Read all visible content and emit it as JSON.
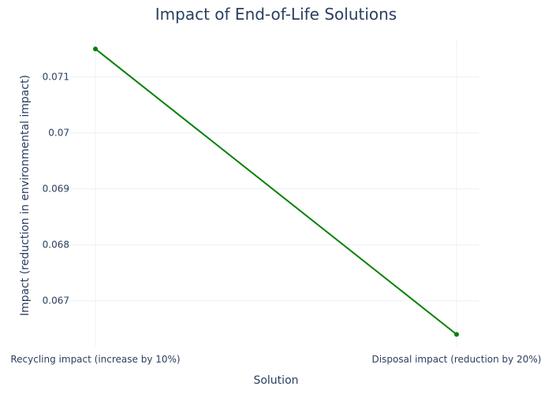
{
  "chart_data": {
    "type": "line",
    "title": "Impact of End-of-Life Solutions",
    "xlabel": "Solution",
    "ylabel": "Impact (reduction in environmental impact)",
    "categories": [
      "Recycling impact (increase by 10%)",
      "Disposal impact (reduction by 20%)"
    ],
    "series": [
      {
        "values": [
          0.0715,
          0.0664
        ],
        "color": "#008000"
      }
    ],
    "yticks": [
      0.067,
      0.068,
      0.069,
      0.07,
      0.071
    ],
    "ytick_labels": [
      "0.067",
      "0.068",
      "0.069",
      "0.07",
      "0.071"
    ],
    "ylim": [
      0.06618,
      0.07167
    ],
    "grid": true,
    "legend": false
  }
}
